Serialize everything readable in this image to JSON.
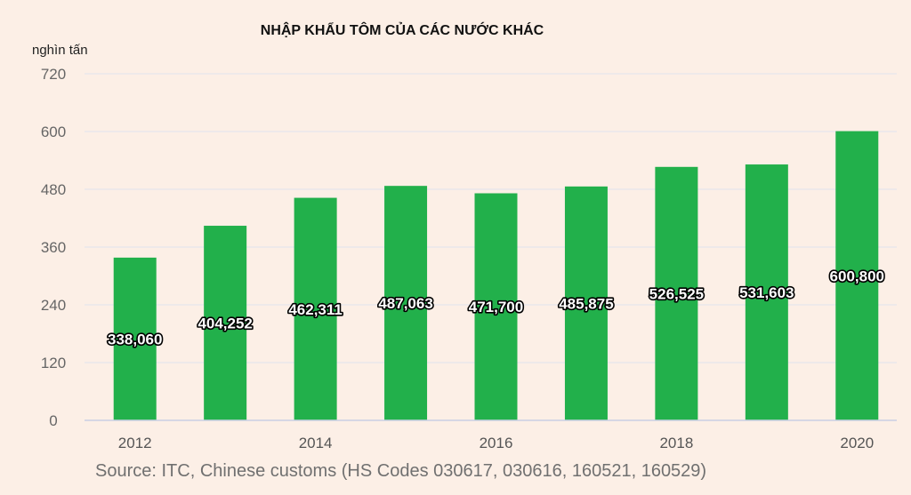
{
  "chart_data": {
    "type": "bar",
    "title": "NHẬP KHẨU TÔM CỦA CÁC NƯỚC KHÁC",
    "ylabel": "nghìn tấn",
    "xlabel": "",
    "categories": [
      "2012",
      "2013",
      "2014",
      "2015",
      "2016",
      "2017",
      "2018",
      "2019",
      "2020"
    ],
    "x_tick_labels": [
      "2012",
      "2014",
      "2016",
      "2018",
      "2020"
    ],
    "values": [
      338060,
      404252,
      462311,
      487063,
      471700,
      485875,
      526525,
      531603,
      600800
    ],
    "value_labels": [
      "338,060",
      "404,252",
      "462,311",
      "487,063",
      "471,700",
      "485,875",
      "526,525",
      "531,603",
      "600,800"
    ],
    "y_ticks": [
      "0",
      "120",
      "240",
      "360",
      "480",
      "600",
      "720"
    ],
    "ylim": [
      0,
      720
    ],
    "grid": true,
    "legend": "none",
    "bar_color": "#22b04b",
    "source": "Source: ITC, Chinese customs (HS Codes 030617, 030616, 160521, 160529)"
  }
}
